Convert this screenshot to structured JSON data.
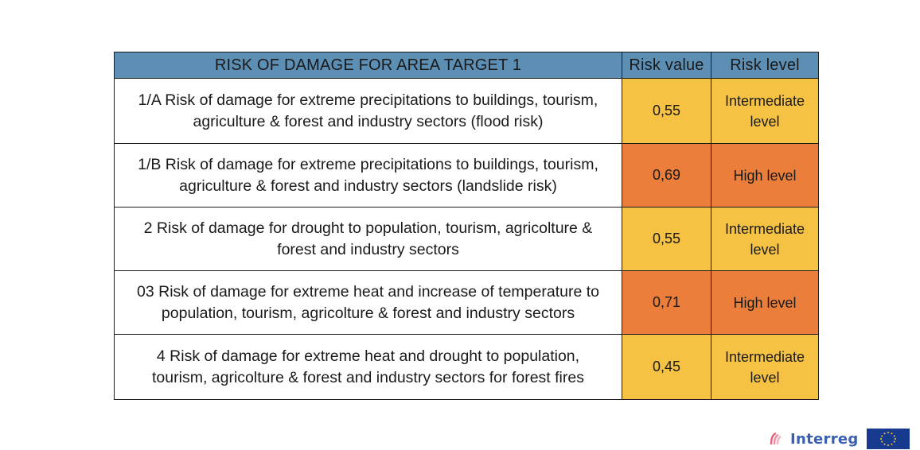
{
  "table": {
    "header": {
      "title": "RISK OF DAMAGE FOR AREA TARGET 1",
      "value_col": "Risk value",
      "level_col": "Risk level"
    },
    "rows": [
      {
        "line1": "1/A Risk of damage for extreme precipitations to buildings, tourism,",
        "line2": "agriculture & forest and industry sectors (flood risk)",
        "value": "0,55",
        "level_line1": "Intermediate",
        "level_line2": "level",
        "color": "#f6c244"
      },
      {
        "line1": "1/B Risk of damage for extreme precipitations to buildings, tourism,",
        "line2": "agriculture & forest and industry sectors (landslide risk)",
        "value": "0,69",
        "level_line1": "High level",
        "level_line2": "",
        "color": "#eb7e3a"
      },
      {
        "line1": "2 Risk of damage for drought to population,  tourism, agricolture &",
        "line2": "forest and industry sectors",
        "value": "0,55",
        "level_line1": "Intermediate",
        "level_line2": "level",
        "color": "#f6c244"
      },
      {
        "line1": "03 Risk of damage for extreme heat and increase of temperature to",
        "line2": "population,  tourism, agricolture & forest and industry sectors",
        "value": "0,71",
        "level_line1": "High level",
        "level_line2": "",
        "color": "#eb7e3a"
      },
      {
        "line1": "4 Risk of damage for extreme heat and drought to population,",
        "line2": "tourism, agricolture & forest and industry sectors for forest fires",
        "value": "0,45",
        "level_line1": "Intermediate",
        "level_line2": "level",
        "color": "#f6c244"
      }
    ]
  },
  "footer": {
    "logo_text": "Interreg",
    "logo_color": "#3a5fb0",
    "flag_icon": "eu-flag-icon",
    "mark_icon": "interreg-mark-icon"
  }
}
